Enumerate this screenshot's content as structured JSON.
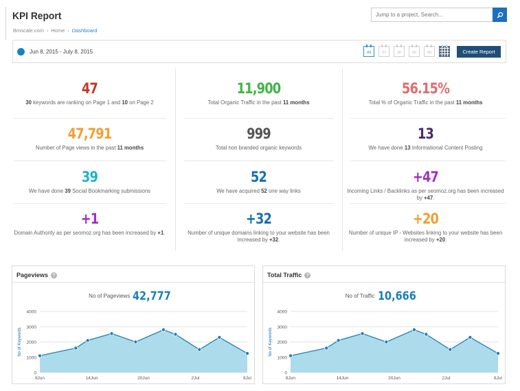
{
  "header": {
    "title": "KPI Report",
    "search_placeholder": "Jump to a project, Search..."
  },
  "breadcrumb": [
    "Bmscale.com",
    "Home",
    "Dashboard"
  ],
  "datebar": {
    "range": "Jun 8, 2015 - July 8, 2015",
    "calendar_labels": [
      "All",
      "07",
      "30",
      "60",
      "90",
      ""
    ],
    "create_label": "Create Report"
  },
  "colors": {
    "accent_blue": "#1b6fc0",
    "button_navy": "#1f4e78",
    "chart_fill": "#a8d9ea",
    "chart_line": "#2a86b8"
  },
  "kpis": [
    {
      "value": "47",
      "color": "#c0392b",
      "desc": [
        "30",
        " keywords are ranking on Page 1 and ",
        "10",
        " on Page 2"
      ]
    },
    {
      "value": "11,900",
      "color": "#3fb544",
      "desc": [
        "",
        "Total Organic Traffic in the past ",
        "11 months",
        ""
      ]
    },
    {
      "value": "56.15%",
      "color": "#e06c6c",
      "desc": [
        "",
        "Total % of Organic Traffic in the past ",
        "11 months",
        ""
      ]
    },
    {
      "value": "47,791",
      "color": "#f0a030",
      "desc": [
        "",
        "Number of Page views in the past ",
        "11 months",
        ""
      ]
    },
    {
      "value": "999",
      "color": "#555555",
      "desc": [
        "",
        "Total non branded organic keywords",
        "",
        ""
      ]
    },
    {
      "value": "13",
      "color": "#4a2a6b",
      "desc": [
        "",
        "We have done ",
        "13",
        " Informational Content Posting"
      ]
    },
    {
      "value": "39",
      "color": "#1eb3c4",
      "desc": [
        "",
        "We have done ",
        "39",
        " Social Bookmarking submissions"
      ]
    },
    {
      "value": "52",
      "color": "#1a6fb0",
      "desc": [
        "",
        "We have acquired ",
        "52",
        " one way links"
      ]
    },
    {
      "value": "+47",
      "color": "#a12fc9",
      "desc": [
        "",
        "Incoming Links / Backlinks as per seomoz.org has been increased by ",
        "+47",
        "."
      ]
    },
    {
      "value": "+1",
      "color": "#a12fc9",
      "desc": [
        "",
        "Domain Authority as per seomoz.org has been increased by ",
        "+1",
        "."
      ]
    },
    {
      "value": "+32",
      "color": "#1a6fb0",
      "desc": [
        "",
        "Number of unique domains linking to your website has been increased by ",
        "+32",
        "."
      ]
    },
    {
      "value": "+20",
      "color": "#f0a030",
      "desc": [
        "",
        "Number of unique IP - Websites linking to your website has been increased by ",
        "+20",
        "."
      ]
    }
  ],
  "panels": [
    {
      "title": "Pageviews",
      "stat_label": "No of Pageviews",
      "stat_value": "42,777"
    },
    {
      "title": "Total Traffic",
      "stat_label": "No of  Traffic",
      "stat_value": "10,666"
    }
  ],
  "chart_data": [
    {
      "type": "area",
      "title": "Pageviews",
      "ylabel": "No of Keywords",
      "xlabel": "",
      "ylim": [
        0,
        4000
      ],
      "yticks": [
        "0",
        "1000",
        "2000",
        "3000",
        "4000"
      ],
      "xticks": [
        "8Jun",
        "14Jun",
        "20Jun",
        "2Jul",
        "8Jul"
      ],
      "series": [
        {
          "x": [
            0,
            4.5,
            6,
            9,
            12,
            15.5,
            17,
            20,
            22.5,
            26
          ],
          "values": [
            1100,
            1600,
            2100,
            2550,
            2000,
            2800,
            2500,
            1500,
            2300,
            1250
          ]
        }
      ]
    },
    {
      "type": "area",
      "title": "Total Traffic",
      "ylabel": "No of Keywords",
      "xlabel": "",
      "ylim": [
        0,
        4000
      ],
      "yticks": [
        "0",
        "1000",
        "2000",
        "3000",
        "4000"
      ],
      "xticks": [
        "8Jun",
        "14Jun",
        "20Jun",
        "2Jul",
        "8Jul"
      ],
      "series": [
        {
          "x": [
            0,
            4.5,
            6,
            9,
            12,
            15.5,
            17,
            20,
            22.5,
            26
          ],
          "values": [
            1100,
            1600,
            2100,
            2550,
            2000,
            2800,
            2500,
            1500,
            2300,
            1250
          ]
        }
      ]
    }
  ]
}
